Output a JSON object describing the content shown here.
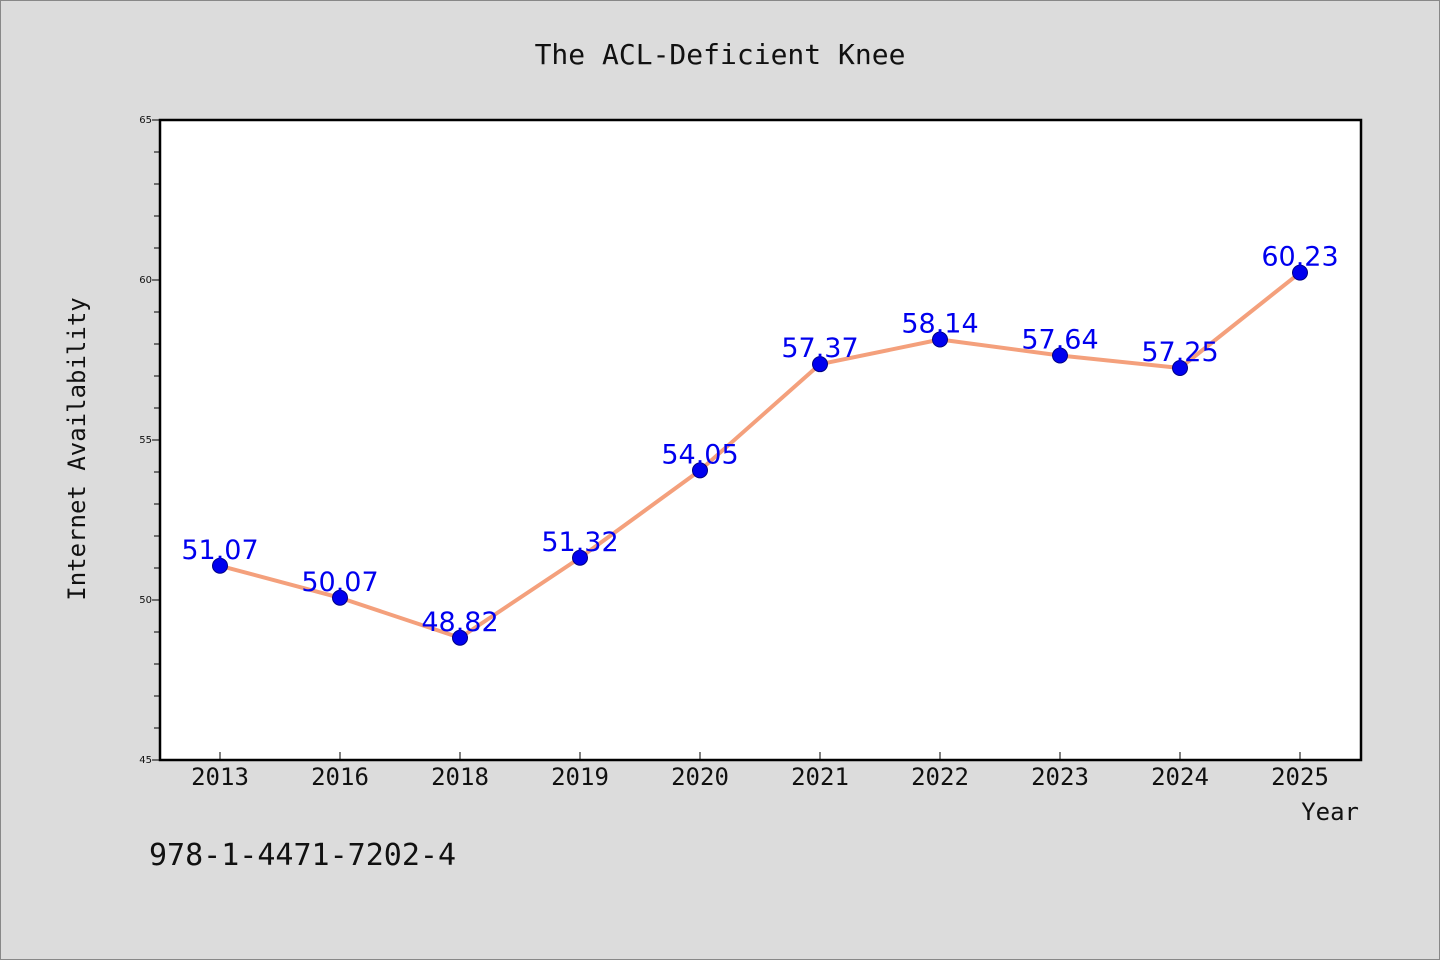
{
  "chart_data": {
    "type": "line",
    "title": "The ACL-Deficient Knee",
    "xlabel": "Year",
    "ylabel": "Internet Availability",
    "categories": [
      "2013",
      "2016",
      "2018",
      "2019",
      "2020",
      "2021",
      "2022",
      "2023",
      "2024",
      "2025"
    ],
    "series": [
      {
        "values": [
          51.07,
          50.07,
          48.82,
          51.32,
          54.05,
          57.37,
          58.14,
          57.64,
          57.25,
          60.23
        ],
        "data_labels": [
          "51.07",
          "50.07",
          "48.82",
          "51.32",
          "54.05",
          "57.37",
          "58.14",
          "57.64",
          "57.25",
          "60.23"
        ],
        "line_color": "#f4a07c",
        "marker_color": "#0000ee"
      }
    ],
    "ylim": [
      45,
      65
    ],
    "yticks": [
      "45",
      "50",
      "55",
      "60",
      "65"
    ],
    "grid": false,
    "legend": "none"
  },
  "annotation": "978-1-4471-7202-4",
  "colors": {
    "background": "#dcdcdc",
    "plot_area": "#ffffff",
    "axis": "#000000",
    "text": "#111111",
    "data_label": "#0000ee"
  }
}
